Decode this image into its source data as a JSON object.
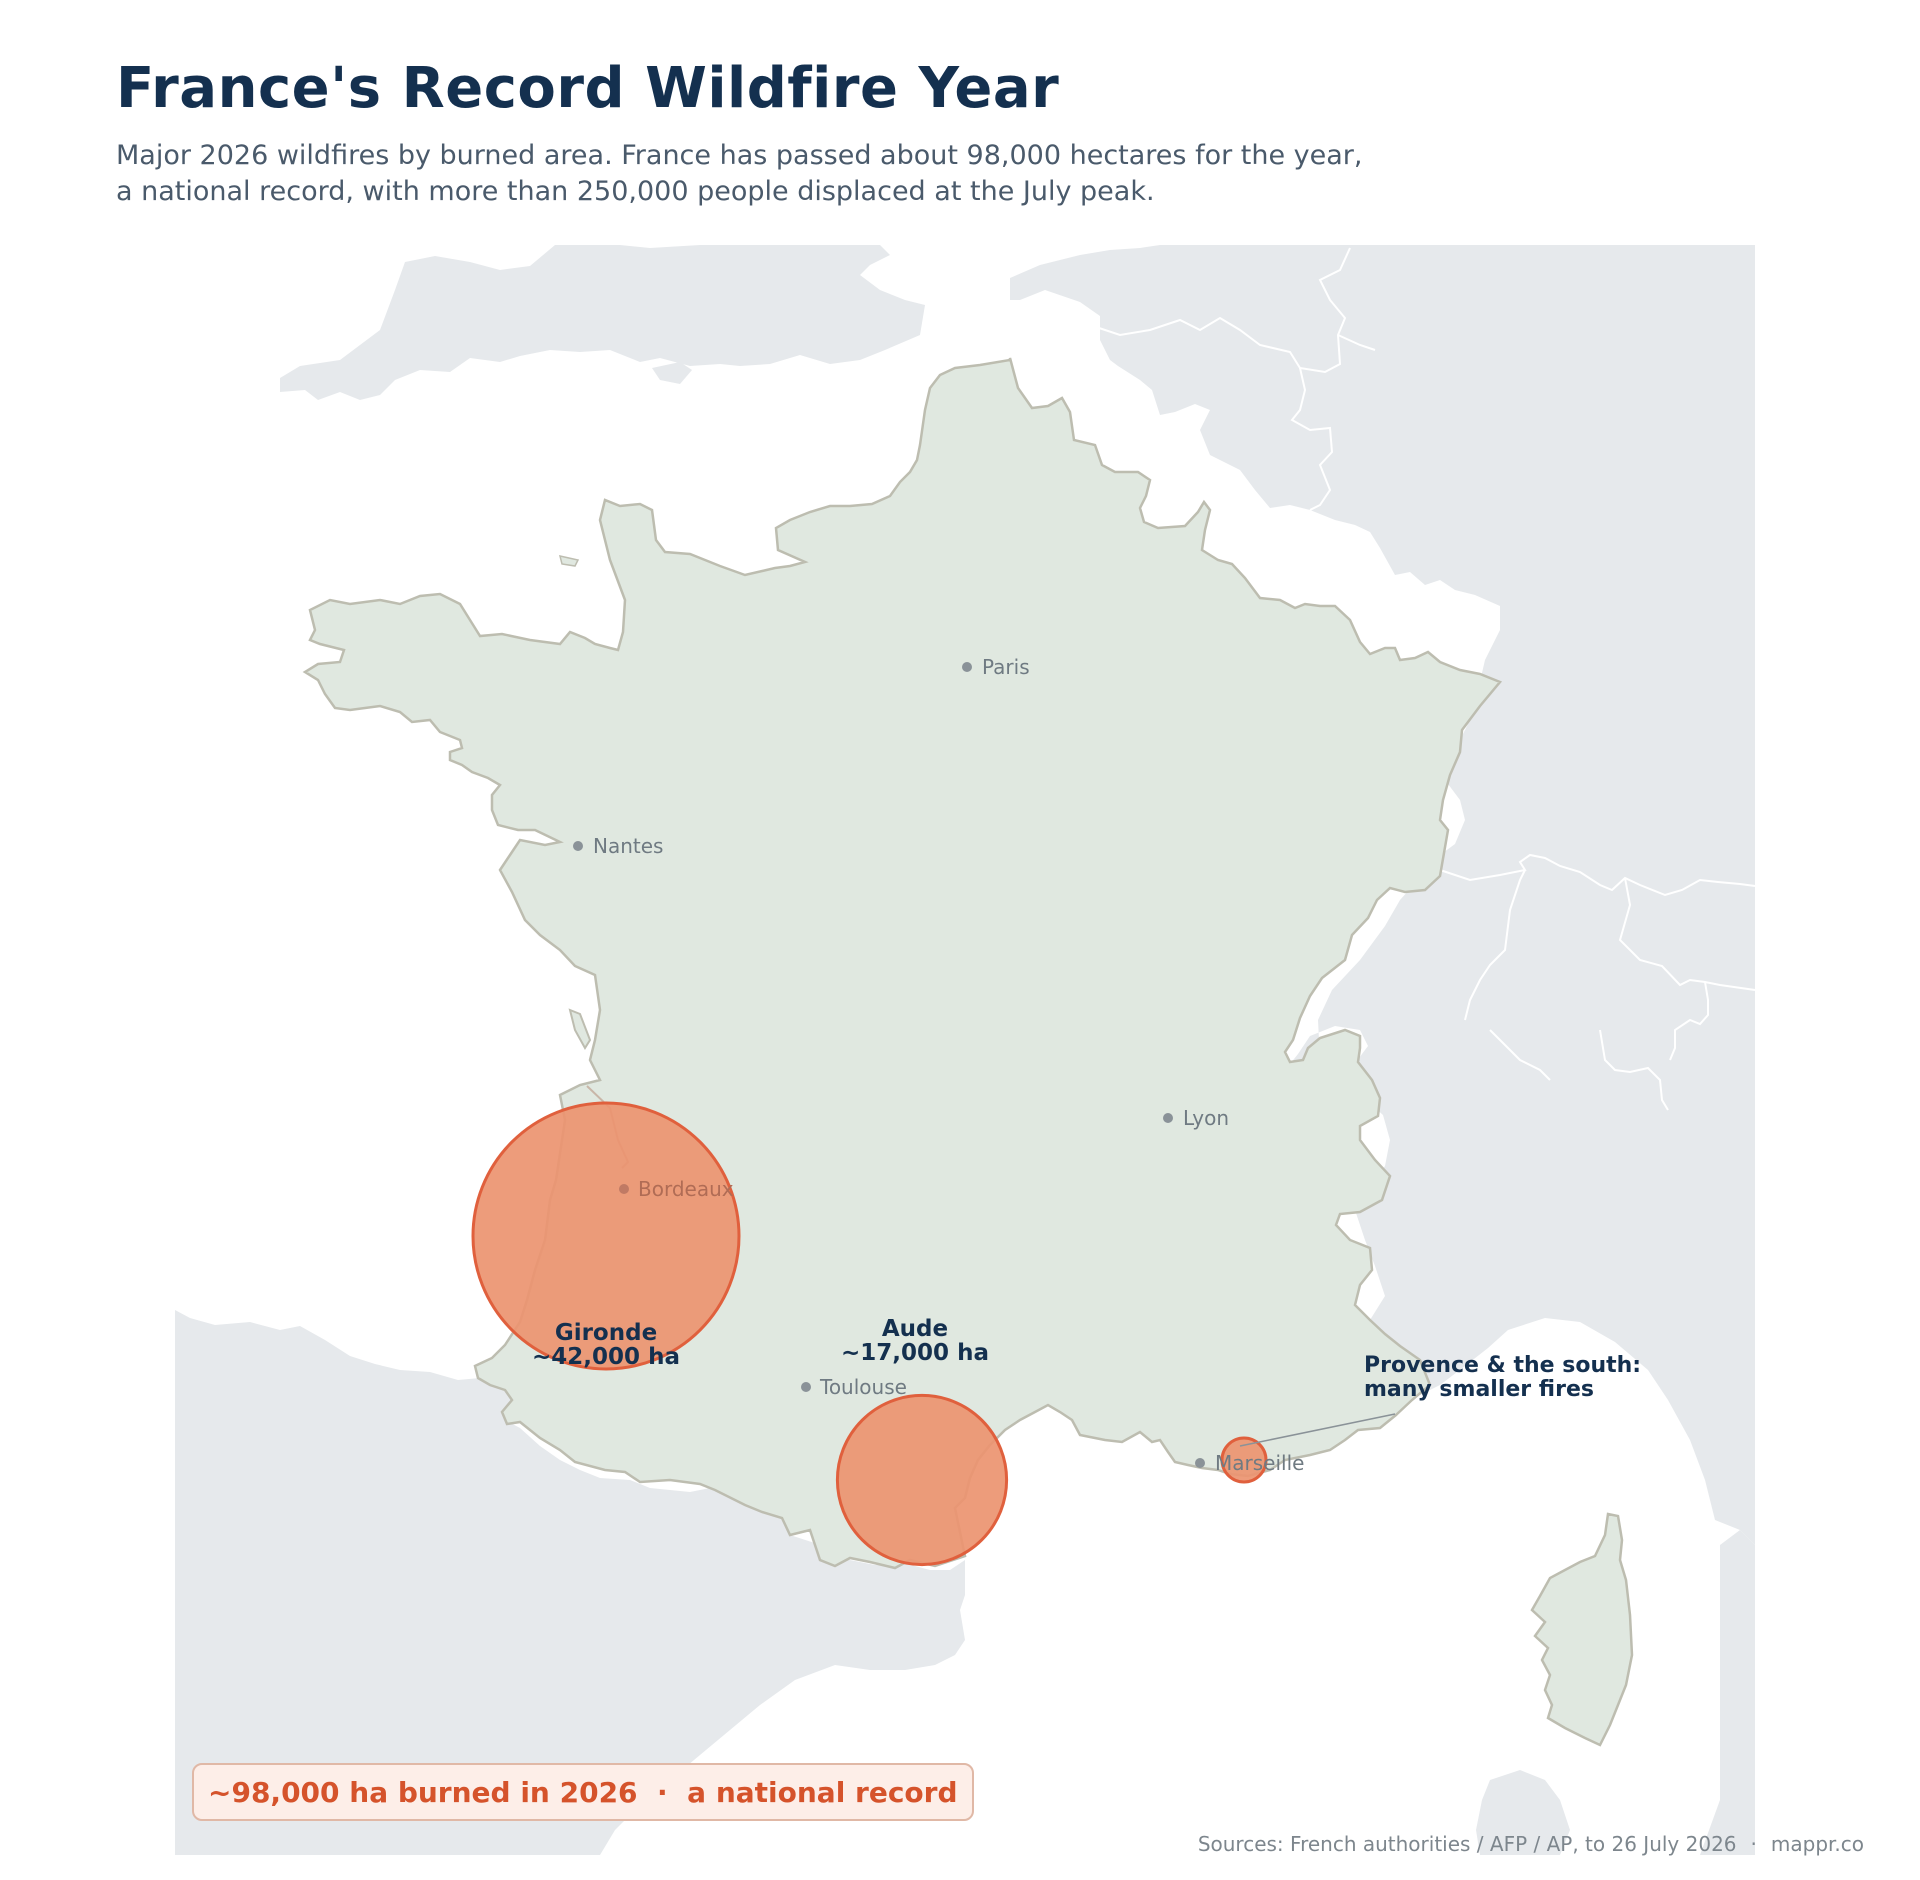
{
  "title": "France's Record Wildfire Year",
  "subtitle": [
    "Major 2026 wildfires by burned area. France has passed about 98,000 hectares for the year,",
    "a national record, with more than 250,000 people displaced at the July peak."
  ],
  "colors": {
    "land_france": "#e0e8e0",
    "land_neighbors": "#e6e9ec",
    "sea": "#ffffff",
    "france_border": "#bdbdb0",
    "fire_fill": "#eb9470",
    "fire_stroke": "#e0603d",
    "title": "#14304f",
    "accent": "#d5532b"
  },
  "cities": [
    {
      "name": "Paris"
    },
    {
      "name": "Nantes"
    },
    {
      "name": "Lyon"
    },
    {
      "name": "Bordeaux"
    },
    {
      "name": "Toulouse"
    },
    {
      "name": "Marseille"
    }
  ],
  "fires": [
    {
      "region": "Gironde",
      "area_ha": 42000,
      "label": "~42,000 ha"
    },
    {
      "region": "Aude",
      "area_ha": 17000,
      "label": "~17,000 ha"
    },
    {
      "region": "Provence",
      "area_ha": 1000,
      "label": ""
    }
  ],
  "callout": {
    "line1": "Provence & the south:",
    "line2": "many smaller fires"
  },
  "record_banner": "~98,000 ha burned in 2026  ·  a national record",
  "sources": {
    "text": "Sources: French authorities / AFP / AP, to 26 July 2026",
    "site": "mappr.co"
  }
}
